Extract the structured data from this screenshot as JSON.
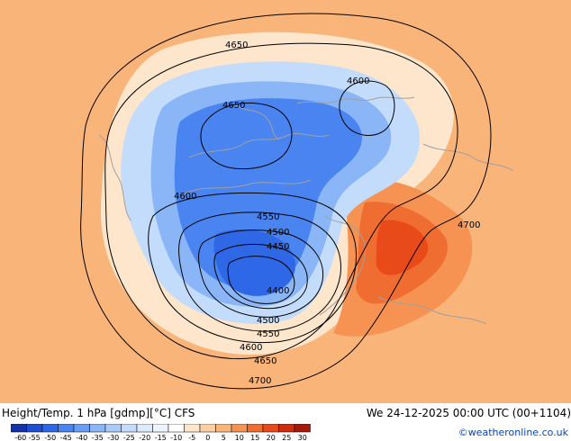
{
  "header": {
    "product": "Height/Temp. 1 hPa [gdmp][°C] CFS",
    "valid": "We 24-12-2025 00:00 UTC (00+1104)"
  },
  "credit": "©weatheronline.co.uk",
  "legend": {
    "ticks": [
      "-60",
      "-55",
      "-50",
      "-45",
      "-40",
      "-35",
      "-30",
      "-25",
      "-20",
      "-15",
      "-10",
      "-5",
      "0",
      "5",
      "10",
      "15",
      "20",
      "25",
      "30"
    ],
    "colors": [
      "#1432a8",
      "#1e4fd0",
      "#2f68e6",
      "#4a84f0",
      "#6a9ef4",
      "#8ab6f7",
      "#a8cbf9",
      "#c4dcfb",
      "#ddeafc",
      "#eef4fd",
      "#ffffff",
      "#fde6cc",
      "#fbcfa3",
      "#f9b47a",
      "#f69352",
      "#f06d32",
      "#e84a1a",
      "#d12c0e",
      "#a81806"
    ]
  },
  "map": {
    "colors": {
      "background": "#f9b47a",
      "warm": "#f69352",
      "hot": "#f06d32",
      "hottest": "#e84a1a",
      "cold_light": "#c4dcfb",
      "cold_mid": "#8ab6f7",
      "cold_deep": "#4a84f0",
      "cold_core": "#2f68e6",
      "coast": "#a0a0a0",
      "contour": "#000000"
    },
    "contour_labels": [
      {
        "id": "4650-north",
        "text": "4650"
      },
      {
        "id": "4600-northeast",
        "text": "4600"
      },
      {
        "id": "4650-west-low",
        "text": "4650"
      },
      {
        "id": "4600-west",
        "text": "4600"
      },
      {
        "id": "4550-top",
        "text": "4550"
      },
      {
        "id": "4500-top",
        "text": "4500"
      },
      {
        "id": "4450-top",
        "text": "4450"
      },
      {
        "id": "4400-center",
        "text": "4400"
      },
      {
        "id": "4500-bottom",
        "text": "4500"
      },
      {
        "id": "4550-bottom",
        "text": "4550"
      },
      {
        "id": "4600-bottom",
        "text": "4600"
      },
      {
        "id": "4650-bottom",
        "text": "4650"
      },
      {
        "id": "4700-bottom",
        "text": "4700"
      },
      {
        "id": "4700-east",
        "text": "4700"
      }
    ]
  }
}
